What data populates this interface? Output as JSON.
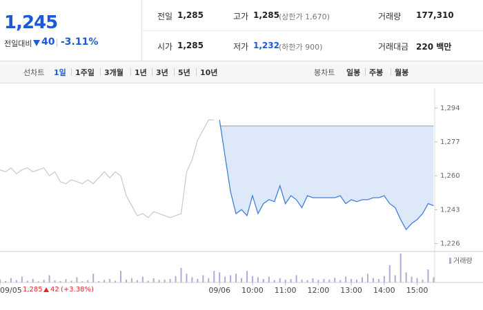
{
  "quote": {
    "price": "1,245",
    "change_label": "전일대비",
    "change": "40",
    "change_rate": "-3.11%"
  },
  "info": [
    [
      {
        "label": "전일",
        "value": "1,285"
      },
      {
        "label": "고가",
        "value": "1,285",
        "note": "(상한가 1,670)"
      },
      {
        "label": "거래량",
        "value": "177,310"
      }
    ],
    [
      {
        "label": "시가",
        "value": "1,285"
      },
      {
        "label": "저가",
        "value": "1,232",
        "note": "(하한가 900)"
      },
      {
        "label": "거래대금",
        "value": "220 백만"
      }
    ]
  ],
  "tabs": {
    "line_label": "선차트",
    "line": [
      "1일",
      "1주일",
      "3개월",
      "1년",
      "3년",
      "5년",
      "10년"
    ],
    "candle_label": "봉차트",
    "candle": [
      "일봉",
      "주봉",
      "월봉"
    ]
  },
  "chart_data": {
    "type": "line",
    "series": [
      {
        "color": "#cccccc",
        "values": [
          1263,
          1262,
          1264,
          1261,
          1263,
          1264,
          1262,
          1263,
          1264,
          1260,
          1262,
          1257,
          1256,
          1258,
          1257,
          1256,
          1258,
          1256,
          1259,
          1262,
          1259,
          1262,
          1260,
          1250,
          1245,
          1240,
          1241,
          1239,
          1242,
          1241,
          1240,
          1239,
          1240,
          1241,
          1262,
          1268,
          1278,
          1283,
          1288,
          1288,
          null,
          null,
          null,
          null,
          null,
          null,
          null,
          null,
          null,
          null,
          null,
          null,
          null,
          null,
          null,
          null,
          null,
          null,
          null,
          null,
          null,
          null,
          null,
          null,
          null,
          null,
          null,
          null,
          null,
          null,
          null,
          null,
          null,
          null,
          null,
          null,
          null,
          null,
          null,
          null
        ]
      },
      {
        "color": "#3f7fd9",
        "fill": "#dde9f8",
        "values": [
          null,
          null,
          null,
          null,
          null,
          null,
          null,
          null,
          null,
          null,
          null,
          null,
          null,
          null,
          null,
          null,
          null,
          null,
          null,
          null,
          null,
          null,
          null,
          null,
          null,
          null,
          null,
          null,
          null,
          null,
          null,
          null,
          null,
          null,
          null,
          null,
          null,
          null,
          null,
          null,
          1288,
          1270,
          1252,
          1241,
          1243,
          1240,
          1250,
          1241,
          1246,
          1248,
          1247,
          1255,
          1246,
          1250,
          1248,
          1244,
          1250,
          1249,
          1249,
          1249,
          1249,
          1249,
          1250,
          1246,
          1248,
          1247,
          1248,
          1248,
          1249,
          1249,
          1250,
          1246,
          1244,
          1238,
          1233,
          1236,
          1238,
          1241,
          1246,
          1245
        ]
      }
    ],
    "base_value": 1285,
    "ylim": [
      1222,
      1304
    ],
    "yticks": [
      {
        "value": 1294,
        "label": "1,294"
      },
      {
        "value": 1277,
        "label": "1,277"
      },
      {
        "value": 1260,
        "label": "1,260"
      },
      {
        "value": 1243,
        "label": "1,243"
      },
      {
        "value": 1226,
        "label": "1,226"
      }
    ],
    "xlim": [
      0,
      88
    ],
    "xticks": [
      {
        "value": 0,
        "label": "09/05"
      },
      {
        "value": 40,
        "label": "09/06"
      },
      {
        "value": 46,
        "label": "10:00"
      },
      {
        "value": 52,
        "label": "11:00"
      },
      {
        "value": 58,
        "label": "12:00"
      },
      {
        "value": 64,
        "label": "13:00"
      },
      {
        "value": 70,
        "label": "14:00"
      },
      {
        "value": 76,
        "label": "15:00"
      }
    ],
    "volume": {
      "name": "거래량",
      "color": "#b9a6d6",
      "vlim": [
        0,
        100
      ],
      "values": [
        10,
        5,
        15,
        8,
        20,
        6,
        12,
        4,
        9,
        25,
        7,
        5,
        11,
        6,
        18,
        4,
        8,
        30,
        5,
        9,
        12,
        6,
        40,
        10,
        15,
        8,
        20,
        6,
        14,
        9,
        10,
        12,
        22,
        50,
        30,
        18,
        12,
        25,
        15,
        40,
        35,
        20,
        25,
        30,
        15,
        40,
        22,
        18,
        12,
        20,
        8,
        15,
        10,
        12,
        25,
        10,
        8,
        14,
        9,
        12,
        10,
        16,
        8,
        20,
        12,
        10,
        18,
        30,
        15,
        12,
        22,
        60,
        25,
        100,
        35,
        20,
        15,
        10,
        45,
        18
      ]
    }
  },
  "footer": {
    "close": "1,285",
    "change": "42",
    "rate": "(+3.38%)"
  }
}
